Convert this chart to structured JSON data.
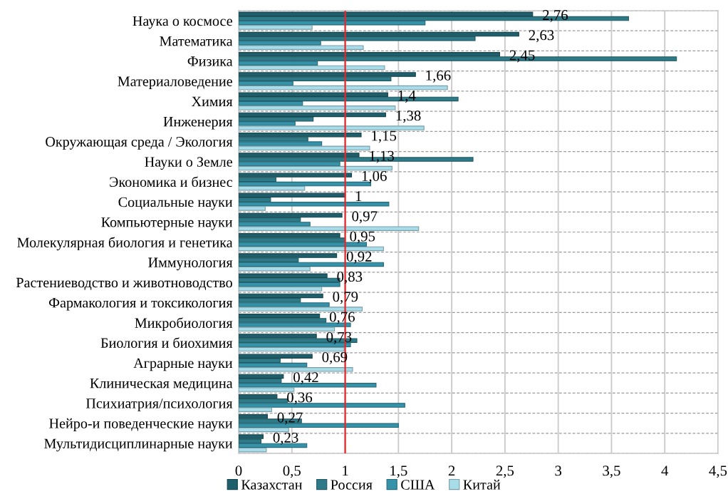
{
  "chart_data": {
    "type": "bar",
    "orientation": "horizontal",
    "categories": [
      "Наука о космосе",
      "Математика",
      "Физика",
      "Материаловедение",
      "Химия",
      "Инженерия",
      "Окружающая среда / Экология",
      "Науки о Земле",
      "Экономика и бизнес",
      "Социальные науки",
      "Компьютерные науки",
      "Молекулярная биология и генетика",
      "Иммунология",
      "Растениеводство и животноводство",
      "Фармакология и токсикология",
      "Микробиология",
      "Биология и биохимия",
      "Аграрные науки",
      "Клиническая медицина",
      "Психиатрия/психология",
      "Нейро-и поведенческие науки",
      "Мультидисциплинарные науки"
    ],
    "series": [
      {
        "name": "Казахстан",
        "color": "#1f5e6b",
        "values": [
          2.76,
          2.63,
          2.45,
          1.66,
          1.4,
          1.38,
          1.15,
          1.13,
          1.06,
          1,
          0.97,
          0.95,
          0.92,
          0.83,
          0.79,
          0.76,
          0.73,
          0.69,
          0.42,
          0.36,
          0.27,
          0.23
        ],
        "value_labels": [
          "2,76",
          "2,63",
          "2,45",
          "1,66",
          "1,4",
          "1,38",
          "1,15",
          "1,13",
          "1,06",
          "1",
          "0,97",
          "0,95",
          "0,92",
          "0,83",
          "0,79",
          "0,76",
          "0,73",
          "0,69",
          "0,42",
          "0,36",
          "0,27",
          "0,23"
        ]
      },
      {
        "name": "Россия",
        "color": "#2e7a88",
        "values": [
          3.66,
          2.22,
          4.11,
          1.43,
          2.06,
          0.7,
          0.65,
          2.2,
          0.35,
          0.3,
          0.58,
          1.0,
          0.56,
          0.95,
          0.58,
          0.82,
          1.11,
          0.39,
          0.4,
          0.46,
          0.59,
          0.21
        ]
      },
      {
        "name": "США",
        "color": "#3592a8",
        "values": [
          1.75,
          0.77,
          0.74,
          0.51,
          0.6,
          0.53,
          0.78,
          0.95,
          1.24,
          1.41,
          0.67,
          1.2,
          1.36,
          0.95,
          0.85,
          1.05,
          1.05,
          0.64,
          1.29,
          1.56,
          1.5,
          0.64
        ]
      },
      {
        "name": "Китай",
        "color": "#a9dce9",
        "values": [
          0.69,
          1.17,
          1.37,
          1.96,
          1.47,
          1.74,
          1.23,
          1.44,
          0.62,
          0.25,
          1.69,
          1.36,
          0.67,
          0.78,
          1.16,
          0.9,
          0.99,
          1.07,
          0.52,
          0.31,
          0.47,
          0.26
        ]
      }
    ],
    "xlim": [
      0,
      4.5
    ],
    "xticks": [
      0,
      {
        "value": 0.5,
        "label": "0,5"
      },
      1,
      {
        "value": 1.5,
        "label": "1,5"
      },
      2,
      {
        "value": 2.5,
        "label": "2,5"
      },
      3,
      {
        "value": 3.5,
        "label": "3,5"
      },
      4,
      {
        "value": 4.5,
        "label": "4,5"
      }
    ],
    "ref_lines": [
      {
        "axis": "x",
        "value": 1,
        "color": "#e8262a"
      }
    ],
    "grid": true,
    "legend": "bottom"
  }
}
